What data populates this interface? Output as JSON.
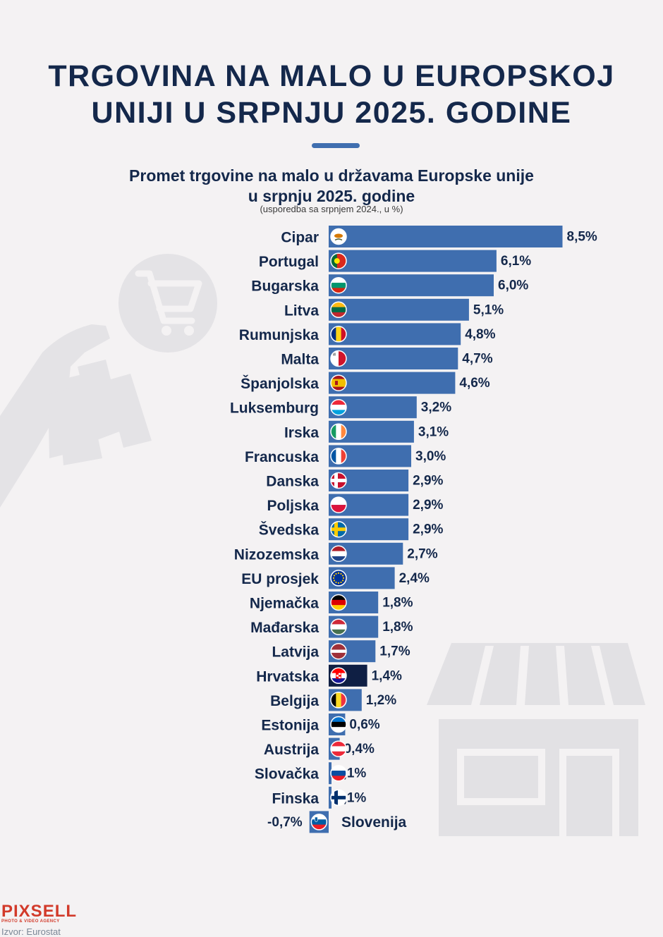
{
  "header": {
    "title_line1": "TRGOVINA NA MALO U EUROPSKOJ",
    "title_line2": "UNIJI U SRPNJU 2025. GODINE"
  },
  "chart_data": {
    "type": "bar",
    "orientation": "horizontal",
    "title_line1": "Promet trgovine na malo u državama Europske unije",
    "title_line2": "u srpnju 2025. godine",
    "note": "(usporedba sa srpnjem 2024., u %)",
    "categories": [
      "Cipar",
      "Portugal",
      "Bugarska",
      "Litva",
      "Rumunjska",
      "Malta",
      "Španjolska",
      "Luksemburg",
      "Irska",
      "Francuska",
      "Danska",
      "Poljska",
      "Švedska",
      "Nizozemska",
      "EU prosjek",
      "Njemačka",
      "Mađarska",
      "Latvija",
      "Hrvatska",
      "Belgija",
      "Estonija",
      "Austrija",
      "Slovačka",
      "Finska",
      "Slovenija"
    ],
    "values": [
      8.5,
      6.1,
      6.0,
      5.1,
      4.8,
      4.7,
      4.6,
      3.2,
      3.1,
      3.0,
      2.9,
      2.9,
      2.9,
      2.7,
      2.4,
      1.8,
      1.8,
      1.7,
      1.4,
      1.2,
      0.6,
      0.4,
      0.1,
      0.1,
      -0.7
    ],
    "value_labels": [
      "8,5%",
      "6,1%",
      "6,0%",
      "5,1%",
      "4,8%",
      "4,7%",
      "4,6%",
      "3,2%",
      "3,1%",
      "3,0%",
      "2,9%",
      "2,9%",
      "2,9%",
      "2,7%",
      "2,4%",
      "1,8%",
      "1,8%",
      "1,7%",
      "1,4%",
      "1,2%",
      "0,6%",
      "0,4%",
      "0,1%",
      "0,1%",
      "-0,7%"
    ],
    "highlight": "Hrvatska",
    "colors": {
      "bar": "#3f6eaf",
      "highlight": "#0f1f44",
      "text": "#14284b"
    },
    "flag_icons": [
      "flag-cy",
      "flag-pt",
      "flag-bg",
      "flag-lt",
      "flag-ro",
      "flag-mt",
      "flag-es",
      "flag-lu",
      "flag-ie",
      "flag-fr",
      "flag-dk",
      "flag-pl",
      "flag-se",
      "flag-nl",
      "flag-eu",
      "flag-de",
      "flag-hu",
      "flag-lv",
      "flag-hr",
      "flag-be",
      "flag-ee",
      "flag-at",
      "flag-sk",
      "flag-fi",
      "flag-si"
    ]
  },
  "footer": {
    "logo": "PIXSELL",
    "logo_tagline": "PHOTO & VIDEO AGENCY",
    "source": "Izvor: Eurostat"
  },
  "decoration_icons": [
    "shopping-cart-icon",
    "shopping-bags-hand-icon",
    "storefront-icon"
  ]
}
